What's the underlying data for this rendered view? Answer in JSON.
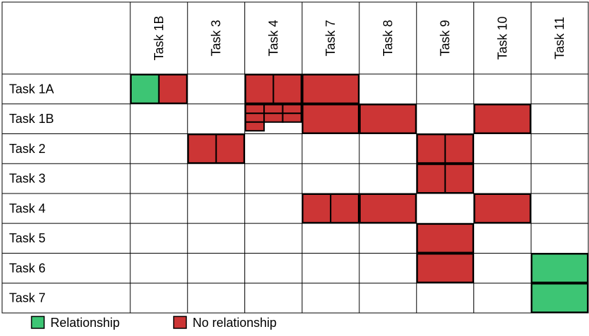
{
  "colors": {
    "relationship": "#3dc574",
    "no_relationship": "#cc3535",
    "border": "#000000",
    "grid": "#000000"
  },
  "columns": [
    "Task 1B",
    "Task 3",
    "Task 4",
    "Task 7",
    "Task 8",
    "Task 9",
    "Task 10",
    "Task 11"
  ],
  "rows": [
    "Task 1A",
    "Task 1B",
    "Task 2",
    "Task 3",
    "Task 4",
    "Task 5",
    "Task 6",
    "Task 7"
  ],
  "cells": [
    {
      "row": 0,
      "col": 0,
      "pattern": "split",
      "types": [
        "rel",
        "norel"
      ]
    },
    {
      "row": 0,
      "col": 2,
      "pattern": "split",
      "types": [
        "norel",
        "norel"
      ]
    },
    {
      "row": 0,
      "col": 3,
      "pattern": "full",
      "types": [
        "norel"
      ]
    },
    {
      "row": 1,
      "col": 2,
      "pattern": "grid",
      "types": [
        "norel",
        "norel",
        "norel",
        "norel",
        "norel",
        "norel",
        "norel"
      ]
    },
    {
      "row": 1,
      "col": 3,
      "pattern": "full",
      "types": [
        "norel"
      ]
    },
    {
      "row": 1,
      "col": 4,
      "pattern": "full",
      "types": [
        "norel"
      ]
    },
    {
      "row": 1,
      "col": 6,
      "pattern": "full",
      "types": [
        "norel"
      ]
    },
    {
      "row": 2,
      "col": 1,
      "pattern": "split",
      "types": [
        "norel",
        "norel"
      ]
    },
    {
      "row": 2,
      "col": 5,
      "pattern": "split",
      "types": [
        "norel",
        "norel"
      ]
    },
    {
      "row": 3,
      "col": 5,
      "pattern": "split",
      "types": [
        "norel",
        "norel"
      ]
    },
    {
      "row": 4,
      "col": 3,
      "pattern": "split",
      "types": [
        "norel",
        "norel"
      ]
    },
    {
      "row": 4,
      "col": 4,
      "pattern": "full",
      "types": [
        "norel"
      ]
    },
    {
      "row": 4,
      "col": 6,
      "pattern": "full",
      "types": [
        "norel"
      ]
    },
    {
      "row": 5,
      "col": 5,
      "pattern": "full",
      "types": [
        "norel"
      ]
    },
    {
      "row": 6,
      "col": 5,
      "pattern": "full",
      "types": [
        "norel"
      ]
    },
    {
      "row": 6,
      "col": 7,
      "pattern": "full",
      "types": [
        "rel"
      ]
    },
    {
      "row": 7,
      "col": 7,
      "pattern": "full",
      "types": [
        "rel"
      ]
    }
  ],
  "legend": [
    {
      "label": "Relationship",
      "type": "rel"
    },
    {
      "label": "No relationship",
      "type": "norel"
    }
  ]
}
